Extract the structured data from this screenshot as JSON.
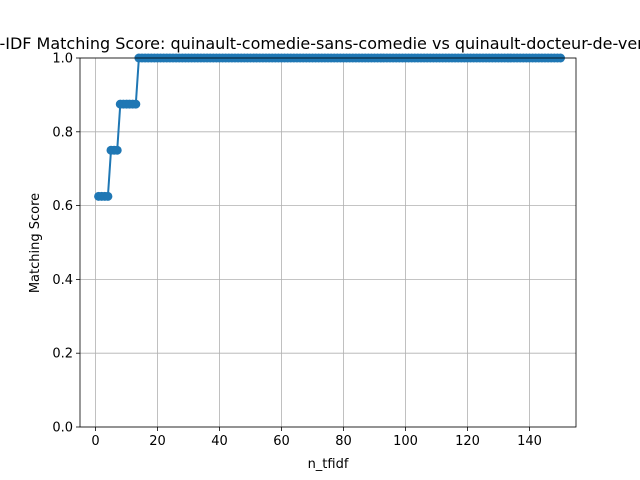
{
  "chart_data": {
    "type": "line",
    "title": "TF-IDF Matching Score: quinault-comedie-sans-comedie vs quinault-docteur-de-verre",
    "xlabel": "n_tfidf",
    "ylabel": "Matching Score",
    "xlim": [
      -5,
      155
    ],
    "ylim": [
      0.0,
      1.0
    ],
    "xticks": [
      0,
      20,
      40,
      60,
      80,
      100,
      120,
      140
    ],
    "yticks": [
      0.0,
      0.2,
      0.4,
      0.6,
      0.8,
      1.0
    ],
    "xtick_labels": [
      "0",
      "20",
      "40",
      "60",
      "80",
      "100",
      "120",
      "140"
    ],
    "ytick_labels": [
      "0.0",
      "0.2",
      "0.4",
      "0.6",
      "0.8",
      "1.0"
    ],
    "grid": true,
    "color": "#1f77b4",
    "marker": "circle",
    "series": [
      {
        "x": [
          1,
          2,
          3,
          4,
          5,
          6,
          7,
          8,
          9,
          10,
          11,
          12,
          13,
          14,
          15,
          16,
          17,
          18,
          19,
          20,
          21,
          22,
          23,
          24,
          25,
          26,
          27,
          28,
          29,
          30,
          31,
          32,
          33,
          34,
          35,
          36,
          37,
          38,
          39,
          40,
          41,
          42,
          43,
          44,
          45,
          46,
          47,
          48,
          49,
          50,
          51,
          52,
          53,
          54,
          55,
          56,
          57,
          58,
          59,
          60,
          61,
          62,
          63,
          64,
          65,
          66,
          67,
          68,
          69,
          70,
          71,
          72,
          73,
          74,
          75,
          76,
          77,
          78,
          79,
          80,
          81,
          82,
          83,
          84,
          85,
          86,
          87,
          88,
          89,
          90,
          91,
          92,
          93,
          94,
          95,
          96,
          97,
          98,
          99,
          100,
          101,
          102,
          103,
          104,
          105,
          106,
          107,
          108,
          109,
          110,
          111,
          112,
          113,
          114,
          115,
          116,
          117,
          118,
          119,
          120,
          121,
          122,
          123,
          124,
          125,
          126,
          127,
          128,
          129,
          130,
          131,
          132,
          133,
          134,
          135,
          136,
          137,
          138,
          139,
          140,
          141,
          142,
          143,
          144,
          145,
          146,
          147,
          148,
          149,
          150
        ],
        "y": [
          0.625,
          0.625,
          0.625,
          0.625,
          0.75,
          0.75,
          0.75,
          0.875,
          0.875,
          0.875,
          0.875,
          0.875,
          0.875,
          1,
          1,
          1,
          1,
          1,
          1,
          1,
          1,
          1,
          1,
          1,
          1,
          1,
          1,
          1,
          1,
          1,
          1,
          1,
          1,
          1,
          1,
          1,
          1,
          1,
          1,
          1,
          1,
          1,
          1,
          1,
          1,
          1,
          1,
          1,
          1,
          1,
          1,
          1,
          1,
          1,
          1,
          1,
          1,
          1,
          1,
          1,
          1,
          1,
          1,
          1,
          1,
          1,
          1,
          1,
          1,
          1,
          1,
          1,
          1,
          1,
          1,
          1,
          1,
          1,
          1,
          1,
          1,
          1,
          1,
          1,
          1,
          1,
          1,
          1,
          1,
          1,
          1,
          1,
          1,
          1,
          1,
          1,
          1,
          1,
          1,
          1,
          1,
          1,
          1,
          1,
          1,
          1,
          1,
          1,
          1,
          1,
          1,
          1,
          1,
          1,
          1,
          1,
          1,
          1,
          1,
          1,
          1,
          1,
          1,
          1,
          1,
          1,
          1,
          1,
          1,
          1,
          1,
          1,
          1,
          1,
          1,
          1,
          1,
          1,
          1,
          1,
          1,
          1,
          1,
          1,
          1,
          1,
          1,
          1,
          1,
          1
        ]
      }
    ]
  }
}
